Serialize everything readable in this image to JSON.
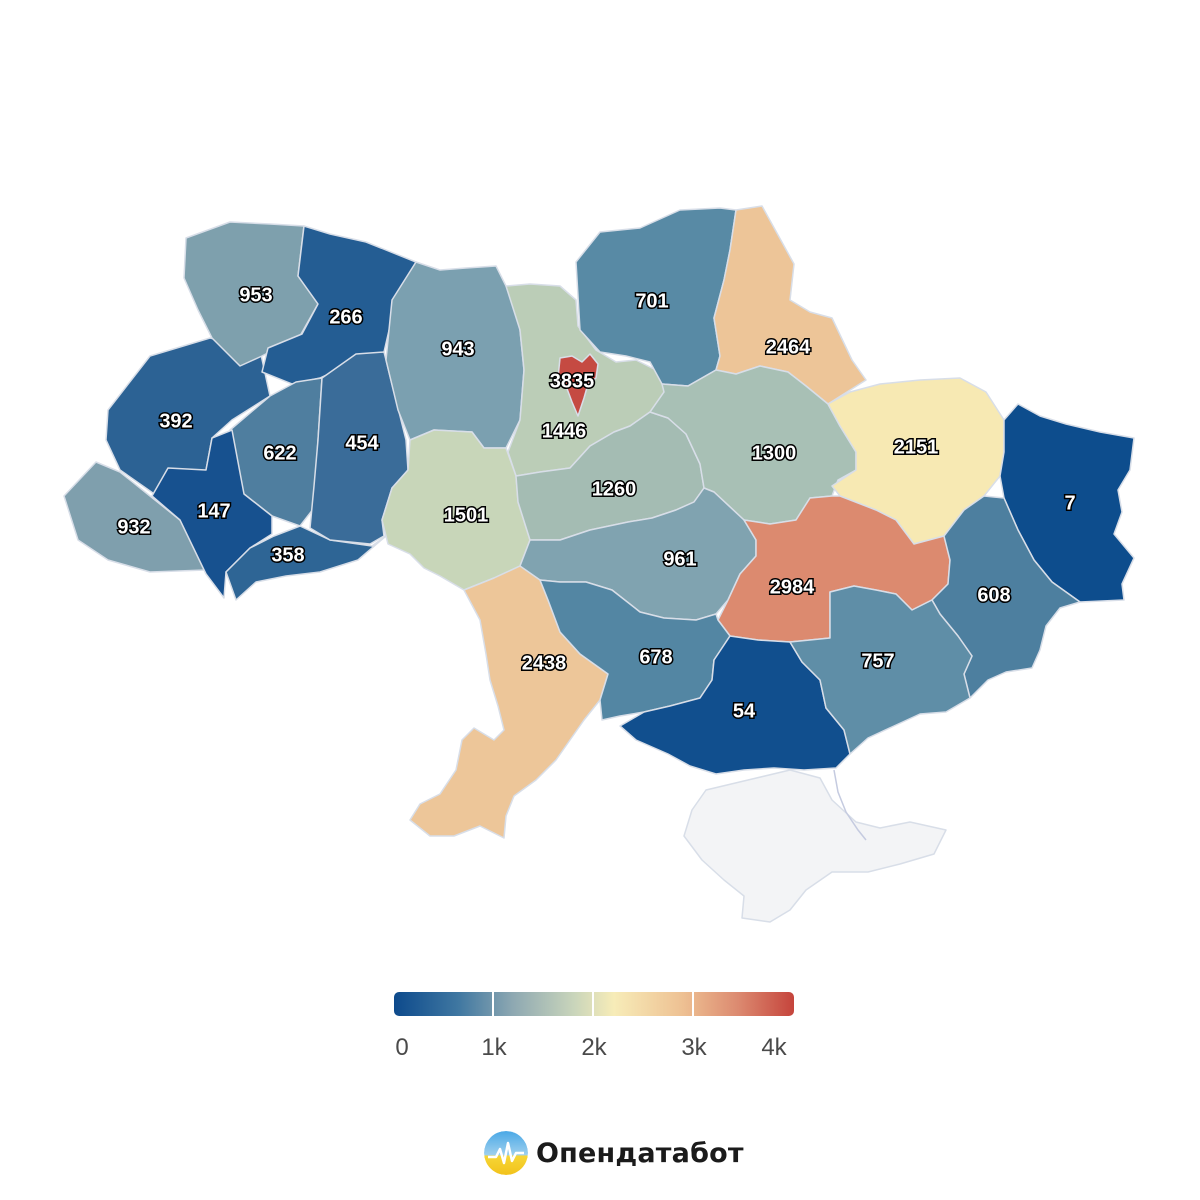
{
  "map": {
    "regions": [
      {
        "name": "volyn",
        "value": "953",
        "color": "#7ea0ad"
      },
      {
        "name": "rivne",
        "value": "266",
        "color": "#245d93"
      },
      {
        "name": "lviv",
        "value": "392",
        "color": "#2c6294"
      },
      {
        "name": "zakarpattia",
        "value": "932",
        "color": "#7f9fad"
      },
      {
        "name": "ivano-frankivsk",
        "value": "147",
        "color": "#17518f"
      },
      {
        "name": "ternopil",
        "value": "622",
        "color": "#4f7e9f"
      },
      {
        "name": "khmelnytskyi",
        "value": "454",
        "color": "#3a6c99"
      },
      {
        "name": "chernivtsi",
        "value": "358",
        "color": "#2e6595"
      },
      {
        "name": "zhytomyr",
        "value": "943",
        "color": "#7ba0b0"
      },
      {
        "name": "kyiv-oblast",
        "value": "1446",
        "color": "#bbcdb7"
      },
      {
        "name": "kyiv-city",
        "value": "3835",
        "color": "#c54a42"
      },
      {
        "name": "chernihiv",
        "value": "701",
        "color": "#588aa5"
      },
      {
        "name": "sumy",
        "value": "2464",
        "color": "#edc598"
      },
      {
        "name": "vinnytsia",
        "value": "1501",
        "color": "#c8d6b9"
      },
      {
        "name": "cherkasy",
        "value": "1260",
        "color": "#a4bcb3"
      },
      {
        "name": "poltava",
        "value": "1300",
        "color": "#a8c0b5"
      },
      {
        "name": "kharkiv",
        "value": "2151",
        "color": "#f7e9b3"
      },
      {
        "name": "luhansk",
        "value": "7",
        "color": "#0d4d8d"
      },
      {
        "name": "kirovohrad",
        "value": "961",
        "color": "#80a3b0"
      },
      {
        "name": "dnipropetrovsk",
        "value": "2984",
        "color": "#dc8a6f"
      },
      {
        "name": "donetsk",
        "value": "608",
        "color": "#4d7f9f"
      },
      {
        "name": "odesa",
        "value": "2438",
        "color": "#edc699"
      },
      {
        "name": "mykolaiv",
        "value": "678",
        "color": "#5386a3"
      },
      {
        "name": "kherson",
        "value": "54",
        "color": "#114f8e"
      },
      {
        "name": "zaporizhzhia",
        "value": "757",
        "color": "#5f8ea7"
      },
      {
        "name": "crimea",
        "value": "",
        "color": "#f3f4f6"
      }
    ]
  },
  "legend": {
    "ticks": [
      "0",
      "1k",
      "2k",
      "3k",
      "4k"
    ]
  },
  "brand": {
    "name": "Опендатабот",
    "colors": {
      "top": "#4aa8e6",
      "bottom": "#f6d637"
    }
  }
}
